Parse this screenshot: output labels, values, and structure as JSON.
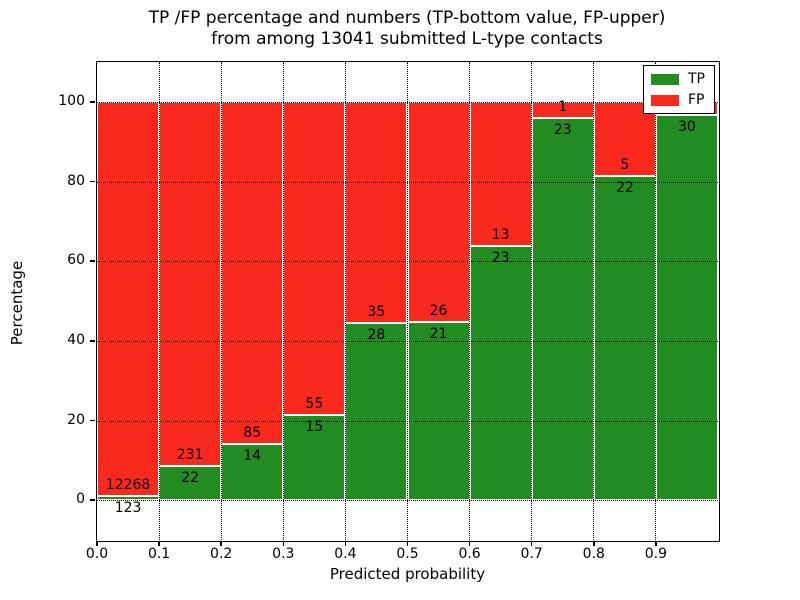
{
  "title": {
    "line1": "TP /FP percentage and numbers (TP-bottom value, FP-upper)",
    "line2": "from among 13041 submitted L-type contacts"
  },
  "axes": {
    "xlabel": "Predicted probability",
    "ylabel": "Percentage",
    "xtick_labels": [
      "0.0",
      "0.1",
      "0.2",
      "0.3",
      "0.4",
      "0.5",
      "0.6",
      "0.7",
      "0.8",
      "0.9"
    ],
    "ytick_labels": [
      "0",
      "20",
      "40",
      "60",
      "80",
      "100"
    ]
  },
  "legend": {
    "items": [
      {
        "label": "TP",
        "color": "#228b22"
      },
      {
        "label": "FP",
        "color": "#f9291d"
      }
    ]
  },
  "chart_data": {
    "type": "bar",
    "stacked": true,
    "title": "TP /FP percentage and numbers (TP-bottom value, FP-upper) from among 13041 submitted L-type contacts",
    "total_submitted": 13041,
    "xlabel": "Predicted probability",
    "ylabel": "Percentage",
    "xlim": [
      0.0,
      1.0
    ],
    "ylim": [
      -10,
      110
    ],
    "grid": "dotted, x at every 0.1 and y at every 20",
    "legend_position": "upper right",
    "bin_width": 0.1,
    "categories": [
      "0.0-0.1",
      "0.1-0.2",
      "0.2-0.3",
      "0.3-0.4",
      "0.4-0.5",
      "0.5-0.6",
      "0.6-0.7",
      "0.7-0.8",
      "0.8-0.9",
      "0.9-1.0"
    ],
    "series": [
      {
        "name": "TP",
        "color": "#228b22",
        "counts": [
          123,
          22,
          14,
          15,
          28,
          21,
          23,
          23,
          22,
          30
        ],
        "values_pct": [
          0.99,
          8.7,
          14.14,
          21.43,
          44.44,
          44.68,
          63.89,
          95.83,
          81.48,
          96.77
        ],
        "count_labels": [
          "123",
          "22",
          "14",
          "15",
          "28",
          "21",
          "23",
          "23",
          "22",
          "30"
        ]
      },
      {
        "name": "FP",
        "color": "#f9291d",
        "counts": [
          12268,
          231,
          85,
          55,
          35,
          26,
          13,
          1,
          5,
          null
        ],
        "values_pct": [
          99.01,
          91.3,
          85.86,
          78.57,
          55.56,
          55.32,
          36.11,
          4.17,
          18.52,
          3.23
        ],
        "count_labels": [
          "12268",
          "231",
          "85",
          "55",
          "35",
          "26",
          "13",
          "1",
          "5",
          ""
        ]
      }
    ],
    "bar_edge_color": "#ffffff"
  }
}
